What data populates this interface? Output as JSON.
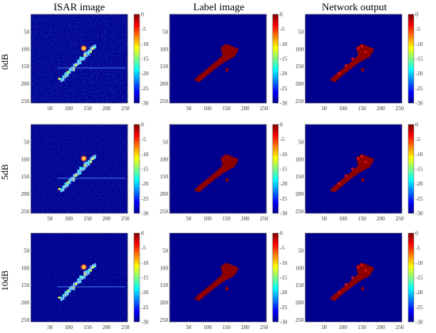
{
  "columns": [
    {
      "id": "isar",
      "title": "ISAR image"
    },
    {
      "id": "label",
      "title": "Label image"
    },
    {
      "id": "output",
      "title": "Network output"
    }
  ],
  "rows": [
    {
      "id": "0dB",
      "label": "0dB"
    },
    {
      "id": "5dB",
      "label": "5dB"
    },
    {
      "id": "10dB",
      "label": "10dB"
    }
  ],
  "axes": {
    "x_ticks": [
      "50",
      "100",
      "150",
      "200",
      "250"
    ],
    "y_ticks": [
      "50",
      "100",
      "150",
      "200",
      "250"
    ],
    "range": [
      0,
      256
    ]
  },
  "colorbar": {
    "ticks": [
      "0",
      "-5",
      "-10",
      "-15",
      "-20",
      "-25",
      "-30"
    ],
    "range": [
      -30,
      0
    ],
    "colormap": "jet"
  },
  "colors": {
    "background": "#00008f",
    "target": "#8f0000",
    "speckle": "#2a6be0"
  }
}
